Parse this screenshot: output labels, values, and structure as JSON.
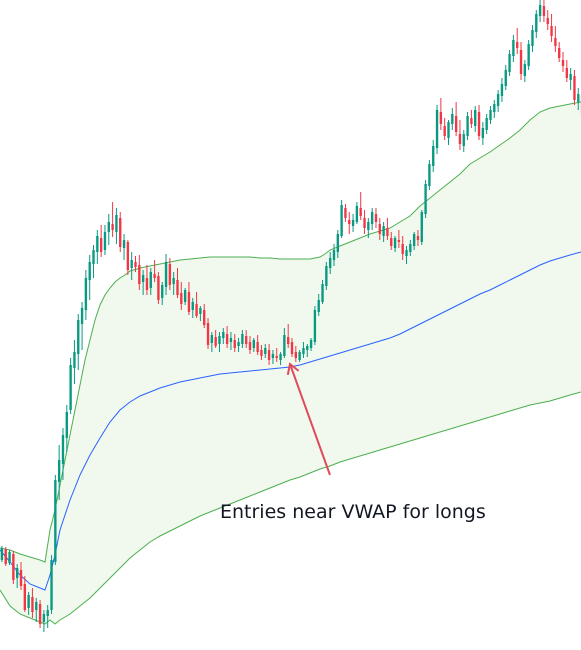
{
  "chart_data": {
    "type": "candlestick",
    "title": "",
    "xlabel": "",
    "ylabel": "",
    "ylim": [
      0,
      650
    ],
    "colors": {
      "up": "#089981",
      "down": "#F23645",
      "vwap": "#2962FF",
      "band": "#4CAF50",
      "band_fill": "#F1F8EE",
      "arrow": "#E04A5A",
      "text": "#131722"
    },
    "candles": [
      [
        90,
        104,
        88,
        102
      ],
      [
        101,
        103,
        84,
        86
      ],
      [
        87,
        100,
        85,
        98
      ],
      [
        96,
        99,
        66,
        70
      ],
      [
        72,
        86,
        62,
        82
      ],
      [
        80,
        88,
        60,
        64
      ],
      [
        66,
        74,
        38,
        40
      ],
      [
        42,
        58,
        35,
        55
      ],
      [
        53,
        62,
        32,
        38
      ],
      [
        40,
        52,
        28,
        48
      ],
      [
        46,
        50,
        22,
        26
      ],
      [
        28,
        40,
        18,
        36
      ],
      [
        34,
        45,
        22,
        40
      ],
      [
        40,
        95,
        36,
        90
      ],
      [
        88,
        175,
        85,
        170
      ],
      [
        168,
        205,
        150,
        190
      ],
      [
        186,
        222,
        170,
        215
      ],
      [
        212,
        245,
        198,
        238
      ],
      [
        240,
        292,
        236,
        285
      ],
      [
        282,
        310,
        266,
        298
      ],
      [
        296,
        336,
        280,
        330
      ],
      [
        326,
        348,
        300,
        342
      ],
      [
        340,
        380,
        330,
        372
      ],
      [
        370,
        395,
        350,
        388
      ],
      [
        386,
        405,
        372,
        400
      ],
      [
        398,
        420,
        386,
        414
      ],
      [
        412,
        425,
        393,
        398
      ],
      [
        400,
        425,
        395,
        418
      ],
      [
        418,
        436,
        405,
        428
      ],
      [
        426,
        448,
        413,
        420
      ],
      [
        418,
        442,
        406,
        435
      ],
      [
        432,
        438,
        398,
        403
      ],
      [
        402,
        416,
        390,
        410
      ],
      [
        408,
        410,
        375,
        380
      ],
      [
        382,
        398,
        370,
        390
      ],
      [
        388,
        394,
        378,
        383
      ],
      [
        385,
        395,
        360,
        366
      ],
      [
        368,
        380,
        355,
        375
      ],
      [
        372,
        385,
        355,
        360
      ],
      [
        362,
        382,
        355,
        378
      ],
      [
        376,
        390,
        368,
        372
      ],
      [
        374,
        378,
        346,
        350
      ],
      [
        352,
        368,
        345,
        365
      ],
      [
        363,
        396,
        355,
        388
      ],
      [
        386,
        392,
        360,
        365
      ],
      [
        366,
        378,
        355,
        372
      ],
      [
        370,
        382,
        352,
        355
      ],
      [
        357,
        368,
        340,
        346
      ],
      [
        348,
        362,
        345,
        360
      ],
      [
        358,
        368,
        335,
        338
      ],
      [
        340,
        352,
        332,
        348
      ],
      [
        346,
        358,
        332,
        334
      ],
      [
        336,
        344,
        329,
        342
      ],
      [
        340,
        346,
        322,
        325
      ],
      [
        327,
        332,
        301,
        305
      ],
      [
        307,
        318,
        298,
        315
      ],
      [
        313,
        320,
        302,
        304
      ],
      [
        306,
        318,
        298,
        314
      ],
      [
        312,
        322,
        306,
        318
      ],
      [
        316,
        324,
        302,
        306
      ],
      [
        308,
        318,
        300,
        312
      ],
      [
        310,
        316,
        298,
        302
      ],
      [
        304,
        312,
        298,
        308
      ],
      [
        306,
        320,
        302,
        316
      ],
      [
        314,
        320,
        302,
        306
      ],
      [
        308,
        314,
        296,
        300
      ],
      [
        302,
        312,
        298,
        310
      ],
      [
        308,
        315,
        295,
        298
      ],
      [
        300,
        305,
        290,
        294
      ],
      [
        296,
        306,
        292,
        302
      ],
      [
        300,
        306,
        285,
        290
      ],
      [
        292,
        300,
        286,
        296
      ],
      [
        294,
        302,
        288,
        292
      ],
      [
        290,
        298,
        285,
        296
      ],
      [
        294,
        322,
        292,
        315
      ],
      [
        313,
        326,
        302,
        306
      ],
      [
        308,
        312,
        293,
        296
      ],
      [
        298,
        304,
        288,
        292
      ],
      [
        290,
        300,
        288,
        298
      ],
      [
        296,
        308,
        292,
        302
      ],
      [
        300,
        306,
        293,
        304
      ],
      [
        302,
        312,
        299,
        310
      ],
      [
        308,
        344,
        305,
        340
      ],
      [
        338,
        356,
        334,
        350
      ],
      [
        348,
        370,
        346,
        366
      ],
      [
        364,
        388,
        360,
        384
      ],
      [
        382,
        398,
        376,
        392
      ],
      [
        390,
        406,
        384,
        400
      ],
      [
        398,
        420,
        392,
        416
      ],
      [
        414,
        450,
        412,
        445
      ],
      [
        442,
        446,
        428,
        432
      ],
      [
        430,
        438,
        416,
        426
      ],
      [
        424,
        436,
        418,
        430
      ],
      [
        428,
        448,
        426,
        444
      ],
      [
        442,
        458,
        430,
        434
      ],
      [
        432,
        440,
        416,
        422
      ],
      [
        420,
        432,
        412,
        428
      ],
      [
        426,
        442,
        420,
        438
      ],
      [
        436,
        442,
        422,
        428
      ],
      [
        426,
        432,
        410,
        416
      ],
      [
        414,
        428,
        408,
        424
      ],
      [
        422,
        432,
        410,
        414
      ],
      [
        412,
        418,
        400,
        404
      ],
      [
        402,
        414,
        398,
        412
      ],
      [
        410,
        420,
        402,
        408
      ],
      [
        406,
        414,
        390,
        396
      ],
      [
        394,
        404,
        386,
        400
      ],
      [
        398,
        410,
        394,
        406
      ],
      [
        404,
        418,
        400,
        416
      ],
      [
        414,
        420,
        404,
        410
      ],
      [
        408,
        440,
        405,
        438
      ],
      [
        436,
        470,
        432,
        466
      ],
      [
        464,
        490,
        460,
        486
      ],
      [
        484,
        510,
        478,
        504
      ],
      [
        502,
        545,
        496,
        540
      ],
      [
        538,
        552,
        520,
        526
      ],
      [
        524,
        532,
        510,
        514
      ],
      [
        512,
        530,
        505,
        528
      ],
      [
        526,
        542,
        520,
        536
      ],
      [
        534,
        548,
        514,
        518
      ],
      [
        516,
        530,
        500,
        506
      ],
      [
        504,
        520,
        498,
        516
      ],
      [
        514,
        538,
        510,
        534
      ],
      [
        532,
        540,
        522,
        526
      ],
      [
        524,
        544,
        518,
        540
      ],
      [
        538,
        545,
        510,
        514
      ],
      [
        512,
        528,
        505,
        522
      ],
      [
        520,
        536,
        516,
        532
      ],
      [
        530,
        544,
        526,
        540
      ],
      [
        538,
        550,
        532,
        546
      ],
      [
        544,
        560,
        538,
        556
      ],
      [
        554,
        572,
        548,
        566
      ],
      [
        564,
        585,
        560,
        580
      ],
      [
        578,
        600,
        574,
        596
      ],
      [
        594,
        615,
        588,
        610
      ],
      [
        608,
        622,
        596,
        602
      ],
      [
        600,
        608,
        570,
        576
      ],
      [
        574,
        590,
        568,
        586
      ],
      [
        584,
        610,
        580,
        606
      ],
      [
        604,
        625,
        598,
        620
      ],
      [
        618,
        640,
        612,
        636
      ],
      [
        634,
        650,
        628,
        645
      ],
      [
        644,
        650,
        628,
        634
      ],
      [
        632,
        640,
        620,
        626
      ],
      [
        624,
        636,
        608,
        614
      ],
      [
        612,
        624,
        598,
        604
      ],
      [
        602,
        608,
        588,
        592
      ],
      [
        590,
        598,
        578,
        584
      ],
      [
        582,
        590,
        568,
        572
      ],
      [
        570,
        582,
        560,
        576
      ],
      [
        574,
        580,
        545,
        550
      ],
      [
        548,
        562,
        540,
        556
      ],
      [
        554,
        564,
        530,
        536
      ]
    ],
    "vwap": [
      [
        0,
        100
      ],
      [
        10,
        88
      ],
      [
        20,
        75
      ],
      [
        30,
        66
      ],
      [
        40,
        62
      ],
      [
        45,
        60
      ],
      [
        50,
        75
      ],
      [
        55,
        95
      ],
      [
        60,
        120
      ],
      [
        70,
        150
      ],
      [
        80,
        175
      ],
      [
        90,
        195
      ],
      [
        100,
        212
      ],
      [
        110,
        228
      ],
      [
        120,
        240
      ],
      [
        130,
        248
      ],
      [
        140,
        254
      ],
      [
        150,
        258
      ],
      [
        160,
        262
      ],
      [
        170,
        265
      ],
      [
        180,
        268
      ],
      [
        190,
        270
      ],
      [
        200,
        272
      ],
      [
        210,
        274
      ],
      [
        220,
        276
      ],
      [
        230,
        277
      ],
      [
        240,
        278
      ],
      [
        250,
        279
      ],
      [
        260,
        280
      ],
      [
        270,
        281
      ],
      [
        280,
        282
      ],
      [
        290,
        283
      ],
      [
        300,
        285
      ],
      [
        310,
        288
      ],
      [
        320,
        291
      ],
      [
        330,
        294
      ],
      [
        340,
        297
      ],
      [
        350,
        300
      ],
      [
        360,
        303
      ],
      [
        370,
        306
      ],
      [
        380,
        309
      ],
      [
        390,
        312
      ],
      [
        400,
        316
      ],
      [
        410,
        321
      ],
      [
        420,
        326
      ],
      [
        430,
        331
      ],
      [
        440,
        336
      ],
      [
        450,
        341
      ],
      [
        460,
        346
      ],
      [
        470,
        351
      ],
      [
        480,
        356
      ],
      [
        490,
        360
      ],
      [
        500,
        365
      ],
      [
        510,
        370
      ],
      [
        520,
        375
      ],
      [
        530,
        380
      ],
      [
        540,
        385
      ],
      [
        550,
        389
      ],
      [
        560,
        392
      ],
      [
        570,
        395
      ],
      [
        581,
        398
      ]
    ],
    "upper_band": [
      [
        0,
        102
      ],
      [
        10,
        100
      ],
      [
        20,
        96
      ],
      [
        30,
        93
      ],
      [
        40,
        90
      ],
      [
        45,
        88
      ],
      [
        50,
        120
      ],
      [
        55,
        140
      ],
      [
        60,
        165
      ],
      [
        65,
        190
      ],
      [
        70,
        215
      ],
      [
        75,
        240
      ],
      [
        80,
        265
      ],
      [
        85,
        290
      ],
      [
        90,
        310
      ],
      [
        95,
        330
      ],
      [
        100,
        345
      ],
      [
        105,
        355
      ],
      [
        110,
        362
      ],
      [
        115,
        368
      ],
      [
        120,
        372
      ],
      [
        125,
        375
      ],
      [
        130,
        379
      ],
      [
        140,
        382
      ],
      [
        150,
        384
      ],
      [
        160,
        386
      ],
      [
        170,
        388
      ],
      [
        180,
        390
      ],
      [
        190,
        391
      ],
      [
        200,
        392
      ],
      [
        210,
        393
      ],
      [
        220,
        393
      ],
      [
        230,
        393
      ],
      [
        240,
        393
      ],
      [
        250,
        393
      ],
      [
        260,
        392
      ],
      [
        270,
        392
      ],
      [
        280,
        391
      ],
      [
        290,
        391
      ],
      [
        300,
        391
      ],
      [
        310,
        391
      ],
      [
        320,
        393
      ],
      [
        325,
        396
      ],
      [
        330,
        400
      ],
      [
        340,
        404
      ],
      [
        350,
        408
      ],
      [
        360,
        412
      ],
      [
        370,
        416
      ],
      [
        380,
        419
      ],
      [
        390,
        422
      ],
      [
        400,
        428
      ],
      [
        410,
        434
      ],
      [
        420,
        444
      ],
      [
        430,
        452
      ],
      [
        440,
        460
      ],
      [
        450,
        468
      ],
      [
        460,
        476
      ],
      [
        470,
        486
      ],
      [
        480,
        492
      ],
      [
        490,
        498
      ],
      [
        500,
        505
      ],
      [
        510,
        512
      ],
      [
        520,
        520
      ],
      [
        530,
        530
      ],
      [
        540,
        538
      ],
      [
        550,
        542
      ],
      [
        560,
        544
      ],
      [
        570,
        546
      ],
      [
        581,
        548
      ]
    ],
    "lower_band": [
      [
        0,
        60
      ],
      [
        10,
        44
      ],
      [
        20,
        36
      ],
      [
        30,
        32
      ],
      [
        40,
        28
      ],
      [
        45,
        26
      ],
      [
        50,
        30
      ],
      [
        55,
        26
      ],
      [
        60,
        30
      ],
      [
        65,
        33
      ],
      [
        70,
        36
      ],
      [
        80,
        44
      ],
      [
        90,
        52
      ],
      [
        100,
        62
      ],
      [
        110,
        72
      ],
      [
        120,
        82
      ],
      [
        130,
        92
      ],
      [
        140,
        100
      ],
      [
        150,
        108
      ],
      [
        160,
        114
      ],
      [
        170,
        119
      ],
      [
        180,
        124
      ],
      [
        190,
        129
      ],
      [
        200,
        134
      ],
      [
        210,
        138
      ],
      [
        220,
        142
      ],
      [
        230,
        146
      ],
      [
        240,
        150
      ],
      [
        250,
        154
      ],
      [
        260,
        158
      ],
      [
        270,
        162
      ],
      [
        280,
        166
      ],
      [
        290,
        170
      ],
      [
        300,
        173
      ],
      [
        310,
        177
      ],
      [
        320,
        181
      ],
      [
        330,
        184
      ],
      [
        340,
        188
      ],
      [
        350,
        191
      ],
      [
        360,
        194
      ],
      [
        370,
        197
      ],
      [
        380,
        200
      ],
      [
        390,
        203
      ],
      [
        400,
        206
      ],
      [
        410,
        209
      ],
      [
        420,
        212
      ],
      [
        430,
        215
      ],
      [
        440,
        218
      ],
      [
        450,
        221
      ],
      [
        460,
        224
      ],
      [
        470,
        227
      ],
      [
        480,
        230
      ],
      [
        490,
        233
      ],
      [
        500,
        236
      ],
      [
        510,
        239
      ],
      [
        520,
        242
      ],
      [
        530,
        245
      ],
      [
        540,
        247
      ],
      [
        550,
        249
      ],
      [
        560,
        252
      ],
      [
        570,
        255
      ],
      [
        581,
        258
      ]
    ],
    "annotations": [
      {
        "text": "Entries near VWAP for longs",
        "arrow_from": [
          330,
          175
        ],
        "arrow_to": [
          290,
          286
        ]
      }
    ]
  }
}
